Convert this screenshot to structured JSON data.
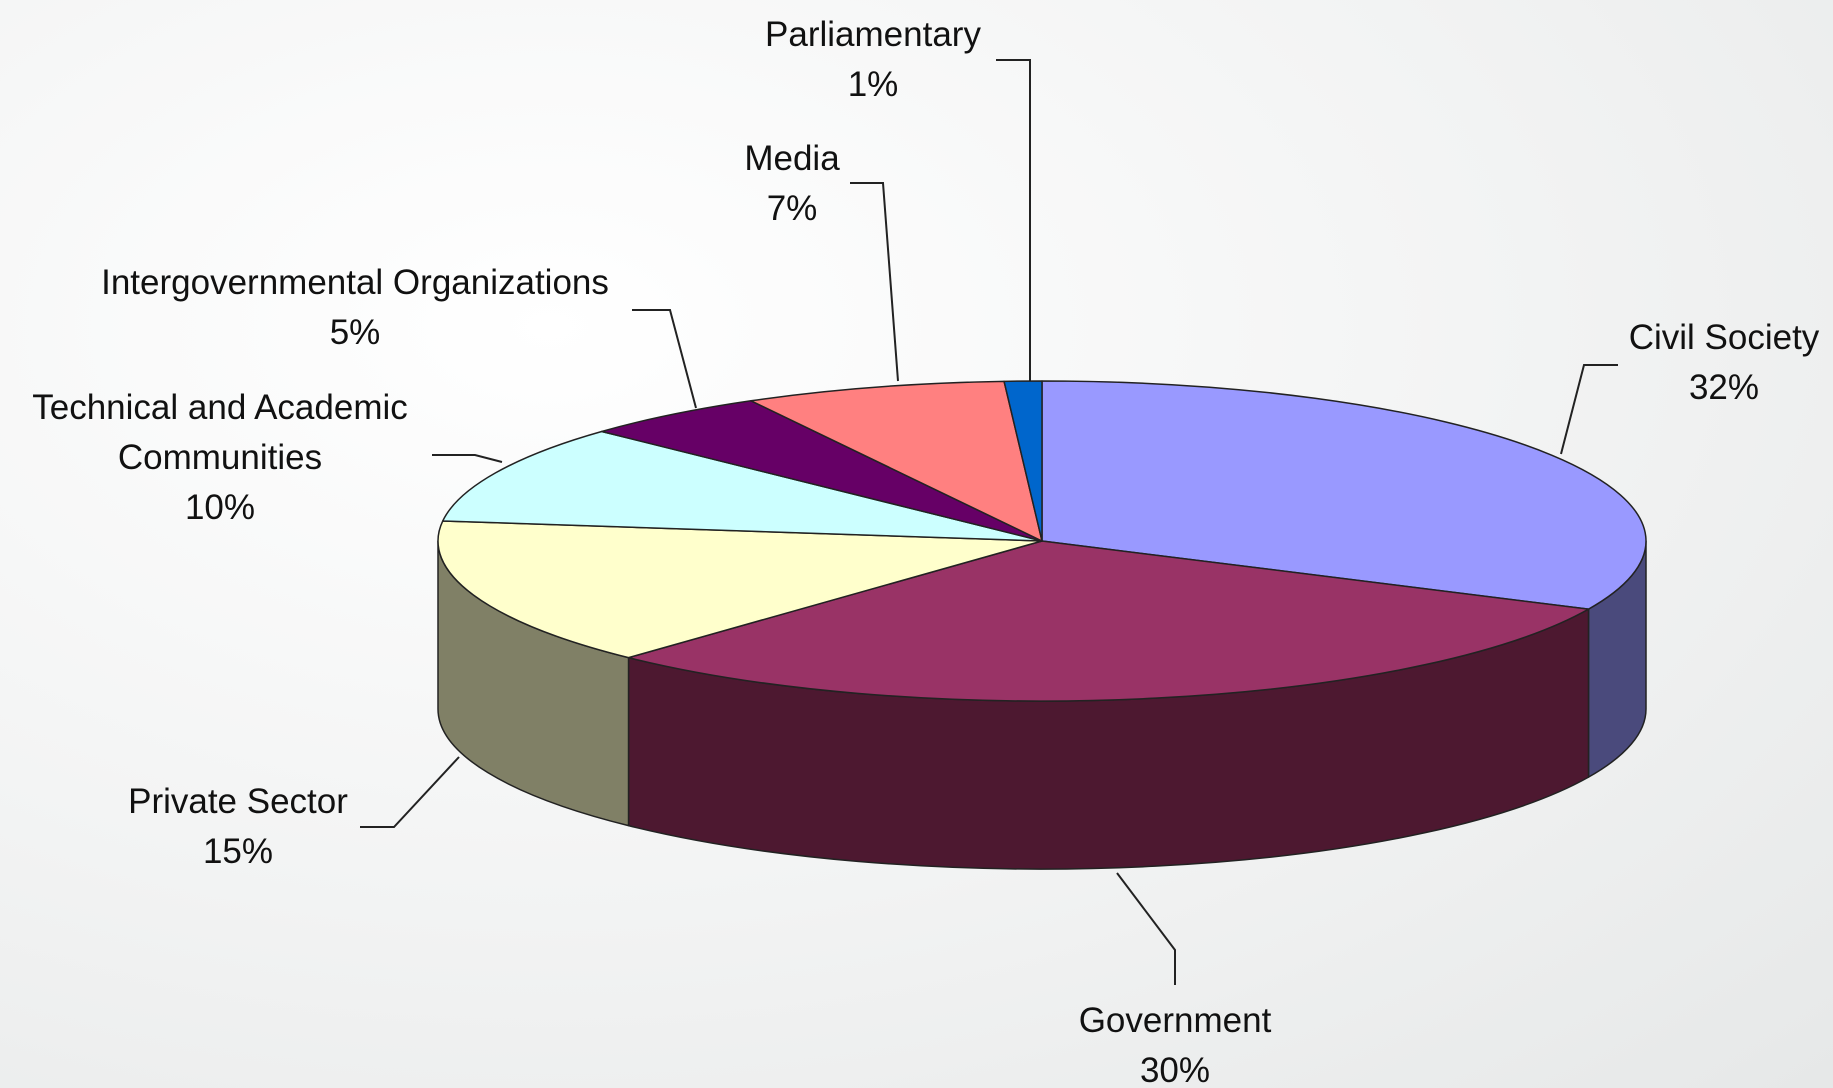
{
  "chart_data": {
    "type": "pie",
    "title": "",
    "three_d": true,
    "start": "12 o'clock, clockwise",
    "slices": [
      {
        "label": "Civil Society",
        "value": 32,
        "display": "32%",
        "color": "#9999ff",
        "side_color": "#4a4a7c"
      },
      {
        "label": "Government",
        "value": 30,
        "display": "30%",
        "color": "#993366",
        "side_color": "#4d1830"
      },
      {
        "label": "Private Sector",
        "value": 15,
        "display": "15%",
        "color": "#ffffcc",
        "side_color": "#808066"
      },
      {
        "label": "Technical and Academic Communities",
        "label_lines": [
          "Technical and Academic",
          "Communities"
        ],
        "value": 10,
        "display": "10%",
        "color": "#ccffff",
        "side_color": "#668080"
      },
      {
        "label": "Intergovernmental Organizations",
        "value": 5,
        "display": "5%",
        "color": "#660066",
        "side_color": "#330033"
      },
      {
        "label": "Media",
        "value": 7,
        "display": "7%",
        "color": "#ff8080",
        "side_color": "#804040"
      },
      {
        "label": "Parliamentary",
        "value": 1,
        "display": "1%",
        "color": "#0066cc",
        "side_color": "#003366"
      }
    ]
  }
}
